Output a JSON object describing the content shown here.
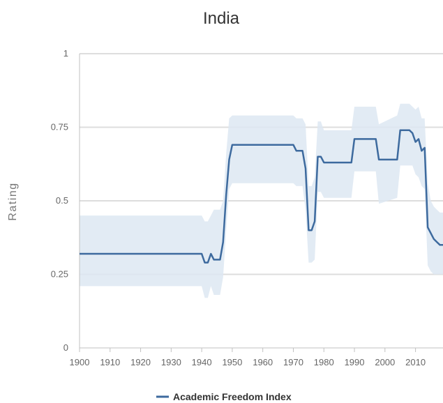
{
  "chart_data": {
    "type": "line",
    "title": "India",
    "xlabel": "",
    "ylabel": "Rating",
    "xlim": [
      1900,
      2019
    ],
    "ylim": [
      0,
      1
    ],
    "x_ticks": [
      "1900",
      "1910",
      "1920",
      "1930",
      "1940",
      "1950",
      "1960",
      "1970",
      "1980",
      "1990",
      "2000",
      "2010"
    ],
    "y_ticks": [
      "0",
      "0.25",
      "0.5",
      "0.75",
      "1"
    ],
    "grid": true,
    "legend_position": "bottom-center",
    "colors": {
      "line": "#3d6a9e",
      "band": "#dde7f2",
      "grid": "#dddddd",
      "axis": "#c0c0c0"
    },
    "series": [
      {
        "name": "Academic Freedom Index",
        "x": [
          1900,
          1940,
          1941,
          1942,
          1943,
          1944,
          1946,
          1947,
          1948,
          1949,
          1950,
          1970,
          1971,
          1973,
          1974,
          1975,
          1976,
          1977,
          1978,
          1979,
          1980,
          1989,
          1990,
          1997,
          1998,
          2004,
          2005,
          2008,
          2009,
          2010,
          2011,
          2012,
          2013,
          2014,
          2015,
          2016,
          2017,
          2018,
          2019
        ],
        "values": [
          0.32,
          0.32,
          0.29,
          0.29,
          0.32,
          0.3,
          0.3,
          0.36,
          0.52,
          0.64,
          0.69,
          0.69,
          0.67,
          0.67,
          0.61,
          0.4,
          0.4,
          0.43,
          0.65,
          0.65,
          0.63,
          0.63,
          0.71,
          0.71,
          0.64,
          0.64,
          0.74,
          0.74,
          0.73,
          0.7,
          0.71,
          0.67,
          0.68,
          0.41,
          0.39,
          0.37,
          0.36,
          0.35,
          0.35
        ],
        "upper": [
          0.45,
          0.45,
          0.43,
          0.43,
          0.45,
          0.47,
          0.47,
          0.5,
          0.66,
          0.78,
          0.79,
          0.79,
          0.78,
          0.78,
          0.76,
          0.55,
          0.55,
          0.58,
          0.77,
          0.77,
          0.74,
          0.74,
          0.82,
          0.82,
          0.76,
          0.79,
          0.83,
          0.83,
          0.82,
          0.81,
          0.82,
          0.78,
          0.78,
          0.56,
          0.5,
          0.48,
          0.47,
          0.46,
          0.46
        ],
        "lower": [
          0.21,
          0.21,
          0.17,
          0.17,
          0.21,
          0.18,
          0.18,
          0.24,
          0.4,
          0.54,
          0.56,
          0.56,
          0.55,
          0.55,
          0.47,
          0.29,
          0.29,
          0.3,
          0.53,
          0.53,
          0.51,
          0.51,
          0.6,
          0.6,
          0.49,
          0.51,
          0.62,
          0.62,
          0.62,
          0.59,
          0.58,
          0.55,
          0.54,
          0.28,
          0.26,
          0.25,
          0.25,
          0.25,
          0.25
        ]
      }
    ]
  }
}
